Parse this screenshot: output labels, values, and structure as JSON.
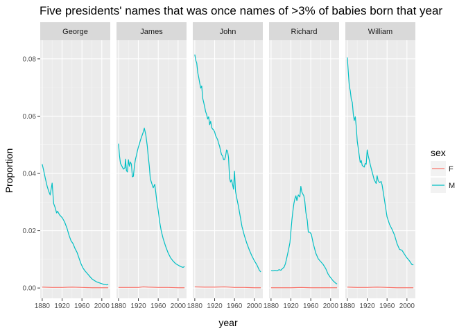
{
  "chart_data": {
    "type": "line",
    "title": "Five presidents' names that was once names of >3% of babies born that year",
    "xlabel": "year",
    "ylabel": "Proportion",
    "facets": [
      "George",
      "James",
      "John",
      "Richard",
      "William"
    ],
    "xlim": [
      1880,
      2013
    ],
    "ylim": [
      0,
      0.08
    ],
    "x_ticks": [
      1880,
      1920,
      1960,
      2000
    ],
    "x_tick_labels": [
      "1880",
      "1920",
      "1960",
      "2000"
    ],
    "y_ticks": [
      0.0,
      0.02,
      0.04,
      0.06,
      0.08
    ],
    "y_tick_labels": [
      "0.00",
      "0.02",
      "0.04",
      "0.06",
      "0.08"
    ],
    "grid": true,
    "legend": {
      "title": "sex",
      "position": "right",
      "entries": [
        {
          "label": "F",
          "color": "#F8766D"
        },
        {
          "label": "M",
          "color": "#00BFC4"
        }
      ]
    },
    "series_by_facet": {
      "George": {
        "M": {
          "x": [
            1880,
            1883,
            1886,
            1888,
            1890,
            1893,
            1896,
            1900,
            1903,
            1906,
            1909,
            1911,
            1915,
            1920,
            1925,
            1930,
            1934,
            1938,
            1942,
            1946,
            1950,
            1954,
            1958,
            1962,
            1966,
            1970,
            1975,
            1980,
            1985,
            1990,
            1995,
            2000,
            2005,
            2010,
            2013
          ],
          "y": [
            0.0432,
            0.041,
            0.0385,
            0.037,
            0.0355,
            0.0338,
            0.0325,
            0.0366,
            0.0295,
            0.0281,
            0.0262,
            0.0268,
            0.0255,
            0.0246,
            0.0231,
            0.0208,
            0.0184,
            0.0165,
            0.0155,
            0.0138,
            0.0125,
            0.0105,
            0.0085,
            0.007,
            0.006,
            0.0052,
            0.0042,
            0.0032,
            0.0026,
            0.0021,
            0.0018,
            0.0015,
            0.0012,
            0.0011,
            0.0013
          ]
        },
        "F": {
          "x": [
            1880,
            1900,
            1920,
            1940,
            1960,
            1980,
            2000,
            2013
          ],
          "y": [
            0.0003,
            0.0002,
            0.0002,
            0.0003,
            0.0002,
            0.0001,
            0.0001,
            0.0001
          ]
        }
      },
      "James": {
        "M": {
          "x": [
            1880,
            1882,
            1884,
            1887,
            1890,
            1893,
            1894,
            1896,
            1898,
            1900,
            1902,
            1904,
            1906,
            1908,
            1910,
            1912,
            1914,
            1916,
            1918,
            1920,
            1922,
            1924,
            1926,
            1928,
            1930,
            1932,
            1935,
            1938,
            1940,
            1942,
            1944,
            1947,
            1950,
            1953,
            1955,
            1957,
            1960,
            1963,
            1966,
            1970,
            1975,
            1980,
            1985,
            1990,
            1995,
            2000,
            2005,
            2010,
            2013
          ],
          "y": [
            0.0504,
            0.0462,
            0.0435,
            0.0425,
            0.0415,
            0.042,
            0.045,
            0.041,
            0.0405,
            0.0448,
            0.0425,
            0.044,
            0.0432,
            0.0388,
            0.039,
            0.0425,
            0.0448,
            0.0462,
            0.0478,
            0.0492,
            0.0502,
            0.0515,
            0.0525,
            0.0535,
            0.0545,
            0.0558,
            0.0535,
            0.0495,
            0.0458,
            0.0426,
            0.0382,
            0.0365,
            0.035,
            0.0362,
            0.0335,
            0.0305,
            0.027,
            0.023,
            0.02,
            0.0172,
            0.0145,
            0.0122,
            0.0105,
            0.0094,
            0.0085,
            0.008,
            0.0075,
            0.0072,
            0.0075
          ]
        },
        "F": {
          "x": [
            1880,
            1900,
            1920,
            1930,
            1940,
            1960,
            1980,
            2000,
            2013
          ],
          "y": [
            0.0002,
            0.0002,
            0.0002,
            0.0004,
            0.0003,
            0.0002,
            0.0002,
            0.0001,
            0.0001
          ]
        }
      },
      "John": {
        "M": {
          "x": [
            1880,
            1882,
            1884,
            1886,
            1888,
            1890,
            1892,
            1894,
            1896,
            1898,
            1900,
            1902,
            1904,
            1906,
            1908,
            1910,
            1912,
            1914,
            1916,
            1918,
            1920,
            1922,
            1924,
            1926,
            1928,
            1930,
            1932,
            1934,
            1936,
            1938,
            1940,
            1942,
            1944,
            1946,
            1948,
            1950,
            1952,
            1954,
            1956,
            1958,
            1960,
            1962,
            1965,
            1968,
            1970,
            1975,
            1980,
            1985,
            1990,
            1995,
            2000,
            2005,
            2010,
            2013
          ],
          "y": [
            0.0815,
            0.0795,
            0.0785,
            0.0752,
            0.0735,
            0.0715,
            0.0698,
            0.0705,
            0.0662,
            0.0648,
            0.0632,
            0.0615,
            0.0605,
            0.059,
            0.0598,
            0.057,
            0.0582,
            0.056,
            0.0555,
            0.0552,
            0.0545,
            0.0532,
            0.0525,
            0.0518,
            0.0505,
            0.0495,
            0.0478,
            0.0465,
            0.0462,
            0.0448,
            0.0448,
            0.046,
            0.0482,
            0.0478,
            0.0455,
            0.0385,
            0.037,
            0.0378,
            0.0362,
            0.0345,
            0.0408,
            0.0338,
            0.031,
            0.0285,
            0.0265,
            0.0215,
            0.0182,
            0.0155,
            0.0132,
            0.0112,
            0.0095,
            0.0081,
            0.0062,
            0.0056
          ]
        },
        "F": {
          "x": [
            1880,
            1900,
            1920,
            1940,
            1960,
            1980,
            2000,
            2013
          ],
          "y": [
            0.0004,
            0.0003,
            0.0003,
            0.0004,
            0.0002,
            0.0002,
            0.0001,
            0.0001
          ]
        }
      },
      "Richard": {
        "M": {
          "x": [
            1880,
            1884,
            1888,
            1892,
            1896,
            1900,
            1903,
            1906,
            1909,
            1912,
            1915,
            1918,
            1920,
            1922,
            1924,
            1926,
            1928,
            1930,
            1932,
            1933,
            1935,
            1938,
            1940,
            1942,
            1944,
            1946,
            1948,
            1950,
            1953,
            1955,
            1958,
            1961,
            1965,
            1970,
            1975,
            1980,
            1985,
            1990,
            1995,
            2000,
            2005,
            2010,
            2013
          ],
          "y": [
            0.0061,
            0.006,
            0.0062,
            0.006,
            0.0064,
            0.0062,
            0.0068,
            0.0072,
            0.0085,
            0.0108,
            0.0132,
            0.0158,
            0.0198,
            0.0238,
            0.0268,
            0.0295,
            0.0312,
            0.0322,
            0.0305,
            0.0312,
            0.0325,
            0.0318,
            0.0355,
            0.0335,
            0.0328,
            0.0322,
            0.0302,
            0.0265,
            0.0235,
            0.0195,
            0.0195,
            0.0188,
            0.0155,
            0.0122,
            0.0102,
            0.0092,
            0.0082,
            0.0068,
            0.0048,
            0.0036,
            0.0025,
            0.0017,
            0.0014
          ]
        },
        "F": {
          "x": [
            1880,
            1900,
            1920,
            1940,
            1960,
            1980,
            2000,
            2013
          ],
          "y": [
            0.0001,
            0.0001,
            0.0001,
            0.0002,
            0.0001,
            0.0001,
            0.0001,
            0.0001
          ]
        }
      },
      "William": {
        "M": {
          "x": [
            1880,
            1882,
            1884,
            1886,
            1888,
            1890,
            1892,
            1894,
            1896,
            1898,
            1900,
            1902,
            1904,
            1906,
            1908,
            1910,
            1912,
            1914,
            1916,
            1918,
            1920,
            1922,
            1924,
            1926,
            1928,
            1930,
            1932,
            1934,
            1936,
            1938,
            1940,
            1942,
            1945,
            1948,
            1950,
            1955,
            1960,
            1965,
            1970,
            1975,
            1980,
            1985,
            1990,
            1995,
            2000,
            2005,
            2010,
            2013
          ],
          "y": [
            0.0805,
            0.0752,
            0.0705,
            0.0688,
            0.0658,
            0.0648,
            0.0608,
            0.0585,
            0.0598,
            0.0562,
            0.0512,
            0.0488,
            0.0462,
            0.0438,
            0.0445,
            0.0428,
            0.0425,
            0.0422,
            0.0435,
            0.0432,
            0.0482,
            0.0462,
            0.0448,
            0.0432,
            0.0418,
            0.0405,
            0.0392,
            0.0378,
            0.0372,
            0.0365,
            0.0392,
            0.0375,
            0.0368,
            0.0372,
            0.036,
            0.0305,
            0.0248,
            0.0222,
            0.0205,
            0.0185,
            0.0155,
            0.0135,
            0.0132,
            0.0118,
            0.0105,
            0.0095,
            0.0082,
            0.0081
          ]
        },
        "F": {
          "x": [
            1880,
            1900,
            1920,
            1940,
            1960,
            1980,
            2000,
            2013
          ],
          "y": [
            0.0003,
            0.0002,
            0.0002,
            0.0003,
            0.0002,
            0.0001,
            0.0001,
            0.0001
          ]
        }
      }
    }
  }
}
